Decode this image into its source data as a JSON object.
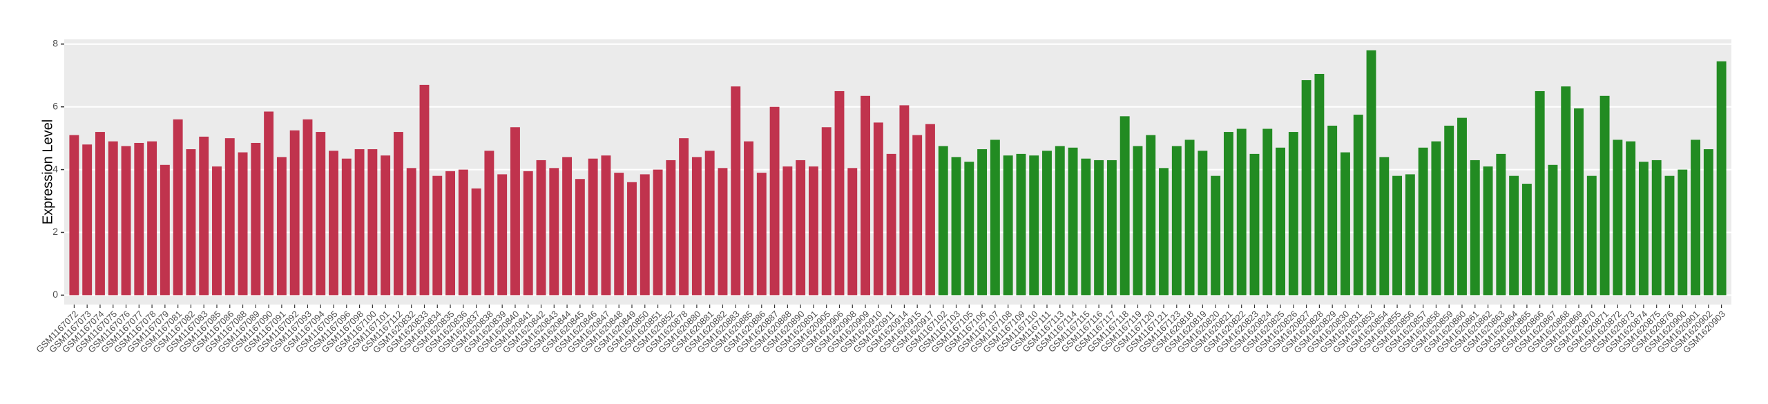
{
  "chart_data": {
    "type": "bar",
    "y_label": "Expression Level",
    "ylim": [
      -0.3,
      8.15
    ],
    "yticks": [
      0,
      2,
      4,
      6,
      8
    ],
    "grid": true,
    "series": [
      {
        "color": "#c0334d",
        "categories": [
          "GSM1167072",
          "GSM1167073",
          "GSM1167074",
          "GSM1167075",
          "GSM1167076",
          "GSM1167077",
          "GSM1167078",
          "GSM1167079",
          "GSM1167081",
          "GSM1167082",
          "GSM1167083",
          "GSM1167085",
          "GSM1167086",
          "GSM1167088",
          "GSM1167089",
          "GSM1167090",
          "GSM1167091",
          "GSM1167092",
          "GSM1167093",
          "GSM1167094",
          "GSM1167095",
          "GSM1167096",
          "GSM1167098",
          "GSM1167100",
          "GSM1167101",
          "GSM1167112",
          "GSM1620832",
          "GSM1620833",
          "GSM1620834",
          "GSM1620835",
          "GSM1620836",
          "GSM1620837",
          "GSM1620838",
          "GSM1620839",
          "GSM1620840",
          "GSM1620841",
          "GSM1620842",
          "GSM1620843",
          "GSM1620844",
          "GSM1620845",
          "GSM1620846",
          "GSM1620847",
          "GSM1620848",
          "GSM1620849",
          "GSM1620850",
          "GSM1620851",
          "GSM1620852",
          "GSM1620878",
          "GSM1620880",
          "GSM1620881",
          "GSM1620882",
          "GSM1620883",
          "GSM1620885",
          "GSM1620886",
          "GSM1620887",
          "GSM1620888",
          "GSM1620890",
          "GSM1620891",
          "GSM1620905",
          "GSM1620906",
          "GSM1620908",
          "GSM1620909",
          "GSM1620910",
          "GSM1620911",
          "GSM1620914",
          "GSM1620915",
          "GSM1620917"
        ],
        "values": [
          5.1,
          4.8,
          5.2,
          4.9,
          4.75,
          4.85,
          4.9,
          4.15,
          5.6,
          4.65,
          5.05,
          4.1,
          5.0,
          4.55,
          4.85,
          5.85,
          4.4,
          5.25,
          5.6,
          5.2,
          4.6,
          4.35,
          4.65,
          4.65,
          4.45,
          5.2,
          4.05,
          6.7,
          3.8,
          3.95,
          4.0,
          3.4,
          4.6,
          3.85,
          5.35,
          3.95,
          4.3,
          4.05,
          4.4,
          3.7,
          4.35,
          4.45,
          3.9,
          3.6,
          3.85,
          4.0,
          4.3,
          5.0,
          4.4,
          4.6,
          4.05,
          6.65,
          4.9,
          3.9,
          6.0,
          4.1,
          4.3,
          4.1,
          5.35,
          6.5,
          4.05,
          6.35,
          5.5,
          4.5,
          6.05,
          5.1,
          5.45
        ]
      },
      {
        "color": "#228b22",
        "categories": [
          "GSM1167102",
          "GSM1167103",
          "GSM1167105",
          "GSM1167106",
          "GSM1167107",
          "GSM1167108",
          "GSM1167109",
          "GSM1167110",
          "GSM1167111",
          "GSM1167113",
          "GSM1167114",
          "GSM1167115",
          "GSM1167116",
          "GSM1167117",
          "GSM1167118",
          "GSM1167119",
          "GSM1167120",
          "GSM1167121",
          "GSM1167123",
          "GSM1620818",
          "GSM1620819",
          "GSM1620820",
          "GSM1620821",
          "GSM1620822",
          "GSM1620823",
          "GSM1620824",
          "GSM1620825",
          "GSM1620826",
          "GSM1620827",
          "GSM1620828",
          "GSM1620829",
          "GSM1620830",
          "GSM1620831",
          "GSM1620853",
          "GSM1620854",
          "GSM1620855",
          "GSM1620856",
          "GSM1620857",
          "GSM1620858",
          "GSM1620859",
          "GSM1620860",
          "GSM1620861",
          "GSM1620862",
          "GSM1620863",
          "GSM1620864",
          "GSM1620865",
          "GSM1620866",
          "GSM1620867",
          "GSM1620868",
          "GSM1620869",
          "GSM1620870",
          "GSM1620871",
          "GSM1620872",
          "GSM1620873",
          "GSM1620874",
          "GSM1620875",
          "GSM1620876",
          "GSM1620900",
          "GSM1620901",
          "GSM1620902",
          "GSM1620903"
        ],
        "values": [
          4.75,
          4.4,
          4.25,
          4.65,
          4.95,
          4.45,
          4.5,
          4.45,
          4.6,
          4.75,
          4.7,
          4.35,
          4.3,
          4.3,
          5.7,
          4.75,
          5.1,
          4.05,
          4.75,
          4.95,
          4.6,
          3.8,
          5.2,
          5.3,
          4.5,
          5.3,
          4.7,
          5.2,
          6.85,
          7.05,
          5.4,
          4.55,
          5.75,
          7.8,
          4.4,
          3.8,
          3.85,
          4.7,
          4.9,
          5.4,
          5.65,
          4.3,
          4.1,
          4.5,
          3.8,
          3.55,
          6.5,
          4.15,
          6.65,
          5.95,
          3.8,
          6.35,
          4.95,
          4.9,
          4.25,
          4.3,
          3.8,
          4.0,
          4.95,
          4.65,
          7.45
        ]
      }
    ]
  }
}
